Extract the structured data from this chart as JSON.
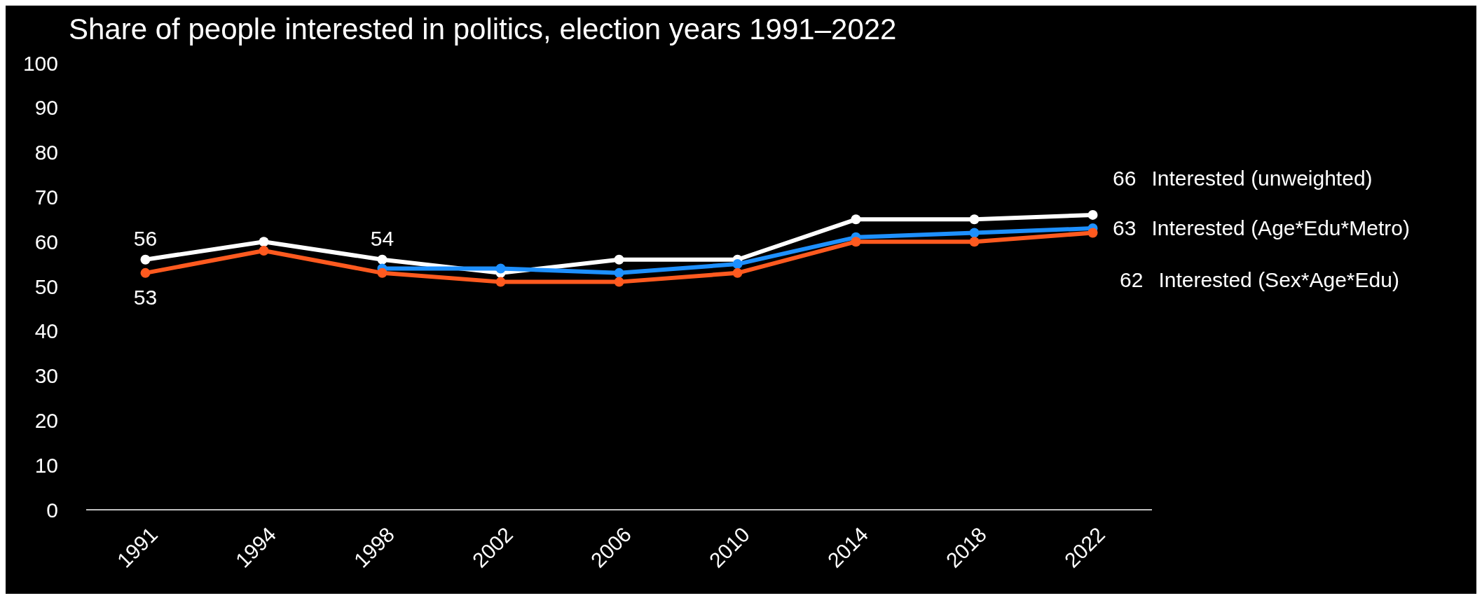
{
  "chart_data": {
    "type": "line",
    "title": "Share of people interested in politics, election years 1991–2022",
    "categories": [
      "1991",
      "1994",
      "1998",
      "2002",
      "2006",
      "2010",
      "2014",
      "2018",
      "2022"
    ],
    "ylim": [
      0,
      100
    ],
    "yticks": [
      0,
      10,
      20,
      30,
      40,
      50,
      60,
      70,
      80,
      90,
      100
    ],
    "grid": false,
    "marker": "circle",
    "line_style": "solid",
    "series": [
      {
        "name": "Interested (unweighted)",
        "color": "#ffffff",
        "values": [
          56,
          60,
          56,
          53,
          56,
          56,
          65,
          65,
          66
        ],
        "value_labels": [
          "56",
          null,
          null,
          null,
          null,
          null,
          null,
          null,
          "66"
        ]
      },
      {
        "name": "Interested (Age*Edu*Metro)",
        "color": "#1e90ff",
        "values": [
          null,
          null,
          54,
          54,
          53,
          55,
          61,
          62,
          63
        ],
        "value_labels": [
          null,
          null,
          "54",
          null,
          null,
          null,
          null,
          null,
          "63"
        ]
      },
      {
        "name": "Interested (Sex*Age*Edu)",
        "color": "#ff5a1f",
        "values": [
          53,
          58,
          53,
          51,
          51,
          53,
          60,
          60,
          62
        ],
        "value_labels": [
          "53",
          null,
          null,
          null,
          null,
          null,
          null,
          null,
          "62"
        ]
      }
    ]
  }
}
